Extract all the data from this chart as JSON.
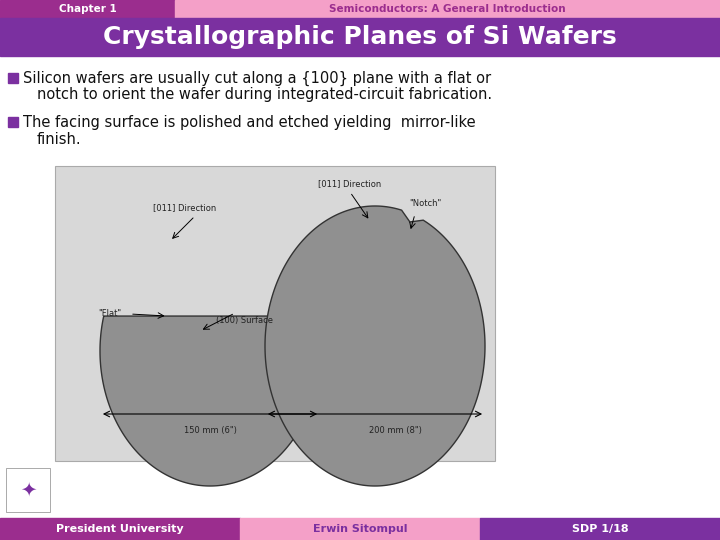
{
  "header_left_text": "Chapter 1",
  "header_left_bg": "#9b2d8e",
  "header_right_text": "Semiconductors: A General Introduction",
  "header_right_bg": "#f4a0c8",
  "title_text": "Crystallographic Planes of Si Wafers",
  "title_bg": "#7b30a0",
  "title_color": "#ffffff",
  "body_bg": "#ffffff",
  "bullet_color": "#7b30a0",
  "bullet1_line1": "Silicon wafers are usually cut along a {100} plane with a flat or",
  "bullet1_line2": "notch to orient the wafer during integrated-circuit fabrication.",
  "bullet2_line1": "The facing surface is polished and etched yielding  mirror-like",
  "bullet2_line2": "finish.",
  "footer_left_text": "President University",
  "footer_left_bg": "#9b2d8e",
  "footer_mid_text": "Erwin Sitompul",
  "footer_mid_bg": "#f4a0c8",
  "footer_right_text": "SDP 1/18",
  "footer_right_bg": "#7b30a0",
  "footer_text_color": "#ffffff",
  "footer_mid_text_color": "#7b30a0",
  "image_bg": "#d8d8d8",
  "wafer_face": "#888888",
  "wafer_edge": "#444444"
}
